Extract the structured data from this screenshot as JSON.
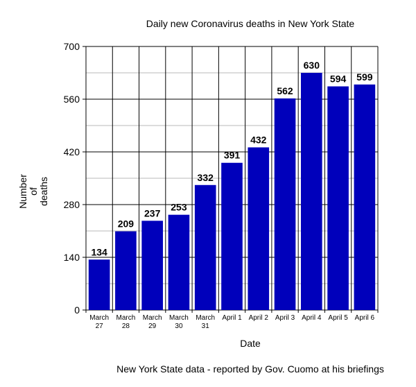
{
  "chart_data": {
    "type": "bar",
    "title": "Daily new Coronavirus deaths in New York State",
    "xlabel": "Date",
    "ylabel": "Number of deaths",
    "ylim": [
      0,
      700
    ],
    "yticks": [
      0,
      140,
      280,
      420,
      560,
      700
    ],
    "grid": true,
    "bar_color": "#0000bb",
    "categories": [
      "March 27",
      "March 28",
      "March 29",
      "March 30",
      "March 31",
      "April 1",
      "April 2",
      "April 3",
      "April 4",
      "April 5",
      "April 6"
    ],
    "values": [
      134,
      209,
      237,
      253,
      332,
      391,
      432,
      562,
      630,
      594,
      599
    ],
    "footnote": "New York State data - reported by Gov. Cuomo at his briefings"
  }
}
